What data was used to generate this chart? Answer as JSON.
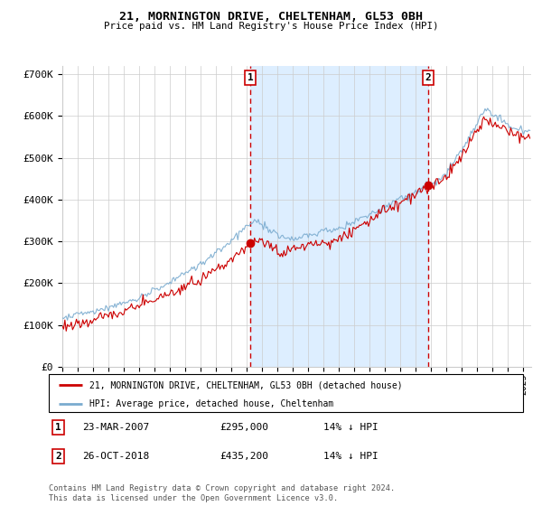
{
  "title": "21, MORNINGTON DRIVE, CHELTENHAM, GL53 0BH",
  "subtitle": "Price paid vs. HM Land Registry's House Price Index (HPI)",
  "sale1_date_num": 2007.22,
  "sale1_price": 295000,
  "sale1_label": "23-MAR-2007",
  "sale1_hpi_diff": "14% ↓ HPI",
  "sale2_date_num": 2018.81,
  "sale2_price": 435200,
  "sale2_label": "26-OCT-2018",
  "sale2_hpi_diff": "14% ↓ HPI",
  "xmin": 1995.0,
  "xmax": 2025.5,
  "ymin": 0,
  "ymax": 720000,
  "red_line_color": "#cc0000",
  "blue_line_color": "#7aabcf",
  "shading_color": "#ddeeff",
  "grid_color": "#cccccc",
  "vline_color": "#cc0000",
  "background_color": "#ffffff",
  "legend_label_red": "21, MORNINGTON DRIVE, CHELTENHAM, GL53 0BH (detached house)",
  "legend_label_blue": "HPI: Average price, detached house, Cheltenham",
  "footer_text": "Contains HM Land Registry data © Crown copyright and database right 2024.\nThis data is licensed under the Open Government Licence v3.0.",
  "yticks": [
    0,
    100000,
    200000,
    300000,
    400000,
    500000,
    600000,
    700000
  ],
  "ytick_labels": [
    "£0",
    "£100K",
    "£200K",
    "£300K",
    "£400K",
    "£500K",
    "£600K",
    "£700K"
  ]
}
